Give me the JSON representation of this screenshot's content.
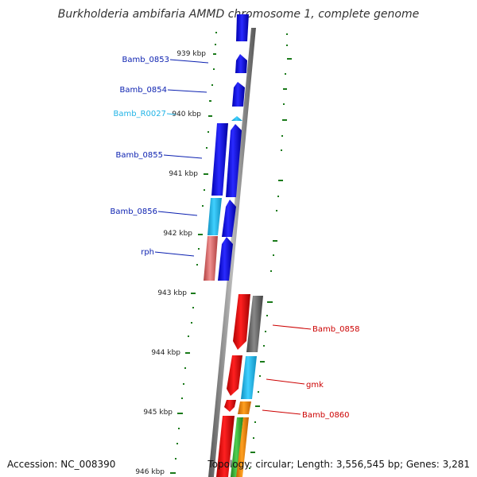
{
  "title": "Burkholderia ambifaria AMMD chromosome 1, complete genome",
  "accession": "Accession: NC_008390",
  "topology": "Topology: circular; Length: 3,556,545 bp; Genes: 3,281",
  "kbp_labels": [
    "939 kbp",
    "940 kbp",
    "941 kbp",
    "942 kbp",
    "943 kbp",
    "944 kbp",
    "945 kbp",
    "946 kbp"
  ],
  "genes": [
    {
      "name": "Bamb_0853",
      "color": "#0a1fb0"
    },
    {
      "name": "Bamb_0854",
      "color": "#0a1fb0"
    },
    {
      "name": "Bamb_R0027",
      "color": "#21b3e6"
    },
    {
      "name": "Bamb_0855",
      "color": "#0a1fb0"
    },
    {
      "name": "Bamb_0856",
      "color": "#0a1fb0"
    },
    {
      "name": "rph",
      "color": "#0a1fb0"
    },
    {
      "name": "Bamb_0858",
      "color": "#cc0000"
    },
    {
      "name": "gmk",
      "color": "#cc0000"
    },
    {
      "name": "Bamb_0860",
      "color": "#cc0000"
    }
  ],
  "colors": {
    "cds_forward": "#0000ee",
    "cds_reverse": "#ee0000",
    "rna": "#22bbee",
    "pseudo": "#e07a7a",
    "gc_skew": "#1a7a1a",
    "backbone": "#888888"
  }
}
